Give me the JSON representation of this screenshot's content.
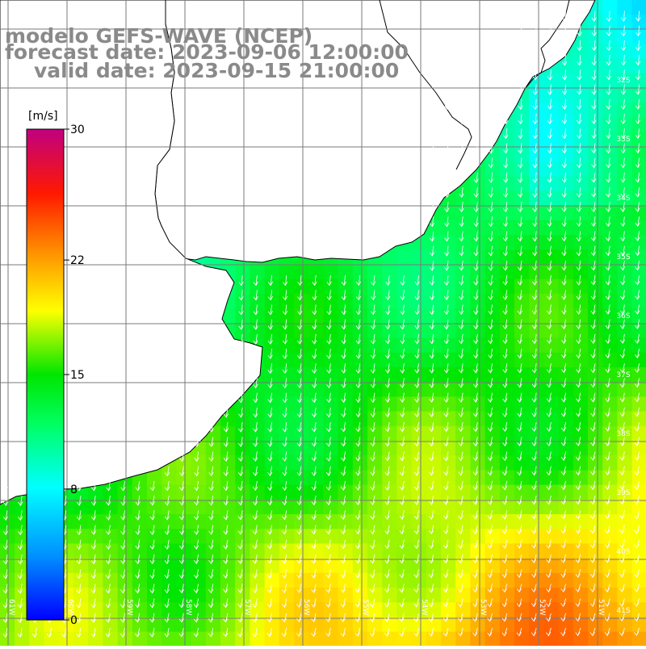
{
  "title": {
    "model": "modelo GEFS-WAVE (NCEP)",
    "forecast": "forecast date: 2023-09-06 12:00:00",
    "valid": "valid date: 2023-09-15 21:00:00"
  },
  "colorbar": {
    "unit": "[m/s]",
    "ticks": [
      "30",
      "22",
      "15",
      "8",
      "0"
    ],
    "tick_values": [
      30,
      22,
      15,
      8,
      0
    ],
    "range": [
      0,
      30
    ],
    "colors": [
      "#0000ff",
      "#00a0ff",
      "#00ffff",
      "#00e600",
      "#ffff00",
      "#ff8000",
      "#ff0000",
      "#c00080"
    ]
  },
  "axes": {
    "lat_labels": [
      "32S",
      "33S",
      "34S",
      "35S",
      "36S",
      "37S",
      "38S",
      "39S",
      "40S",
      "41S"
    ],
    "lon_labels": [
      "61W",
      "60W",
      "59W",
      "58W",
      "57W",
      "56W",
      "55W",
      "54W",
      "53W",
      "52W",
      "51W"
    ]
  },
  "colors": {
    "land": "#ffffff",
    "coastline": "#000000",
    "grid": "#7a7a7a",
    "arrows": "#ffffff",
    "title_text": "#8a8a8a"
  }
}
